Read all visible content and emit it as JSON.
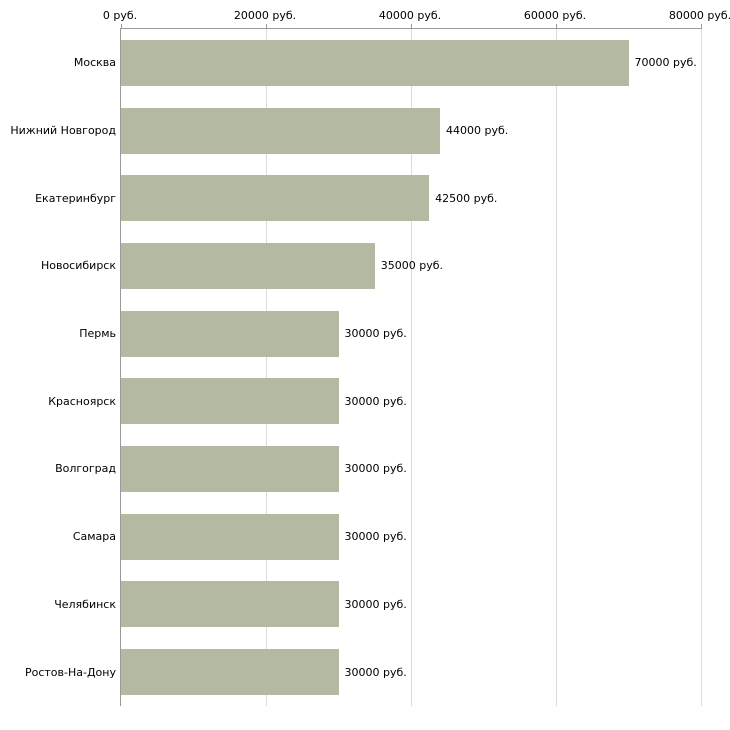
{
  "chart_data": {
    "type": "bar",
    "orientation": "horizontal",
    "title": "",
    "xlabel": "",
    "ylabel": "",
    "categories": [
      "Москва",
      "Нижний Новгород",
      "Екатеринбург",
      "Новосибирск",
      "Пермь",
      "Красноярск",
      "Волгоград",
      "Самара",
      "Челябинск",
      "Ростов-На-Дону"
    ],
    "values": [
      70000,
      44000,
      42500,
      35000,
      30000,
      30000,
      30000,
      30000,
      30000,
      30000
    ],
    "value_labels": [
      "70000 руб.",
      "44000 руб.",
      "42500 руб.",
      "35000 руб.",
      "30000 руб.",
      "30000 руб.",
      "30000 руб.",
      "30000 руб.",
      "30000 руб.",
      "30000 руб."
    ],
    "x_ticks": [
      {
        "value": 0,
        "label": "0 руб."
      },
      {
        "value": 20000,
        "label": "20000 руб."
      },
      {
        "value": 40000,
        "label": "40000 руб."
      },
      {
        "value": 60000,
        "label": "60000 руб."
      },
      {
        "value": 80000,
        "label": "80000 руб."
      }
    ],
    "xlim": [
      0,
      80000
    ],
    "grid": true,
    "legend": "none",
    "bar_color": "#b4baa2",
    "axis_color": "#9a9a9a",
    "gridline_color": "#dcdcdc",
    "background_color": "#ffffff"
  }
}
